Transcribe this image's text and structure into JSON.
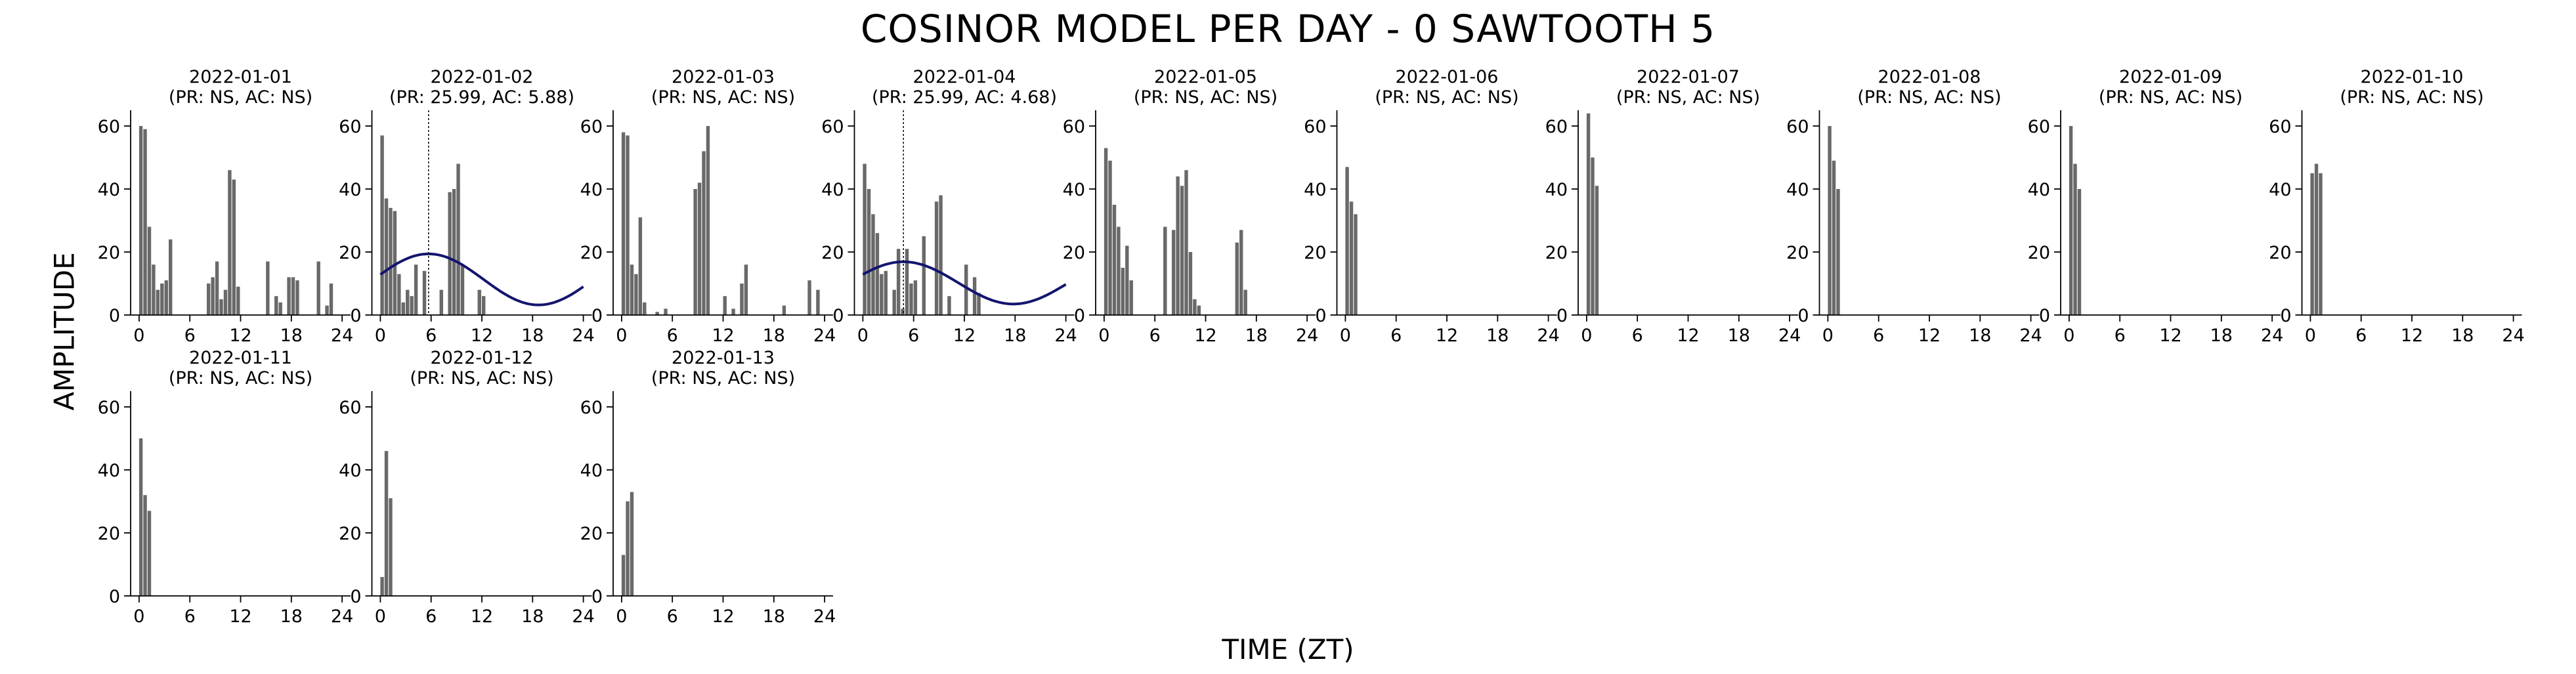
{
  "title": "COSINOR MODEL PER DAY - 0 SAWTOOTH 5",
  "xlabel": "TIME (ZT)",
  "ylabel": "AMPLITUDE",
  "chart_data": {
    "type": "bar",
    "title": "COSINOR MODEL PER DAY - 0 SAWTOOTH 5",
    "xlabel": "TIME (ZT)",
    "ylabel": "AMPLITUDE",
    "xlim": [
      -1,
      25
    ],
    "ylim": [
      0,
      65
    ],
    "xticks": [
      0,
      6,
      12,
      18,
      24
    ],
    "yticks": [
      0,
      20,
      40,
      60
    ],
    "bar_color": "#696969",
    "fit_color": "#14146e",
    "x": [
      0,
      0.5,
      1,
      1.5,
      2,
      2.5,
      3,
      3.5,
      4,
      4.5,
      5,
      5.5,
      6,
      6.5,
      7,
      7.5,
      8,
      8.5,
      9,
      9.5,
      10,
      10.5,
      11,
      11.5,
      12,
      12.5,
      13,
      13.5,
      14,
      14.5,
      15,
      15.5,
      16,
      16.5,
      17,
      17.5,
      18,
      18.5,
      19,
      19.5,
      20,
      20.5,
      21,
      21.5,
      22,
      22.5,
      23,
      23.5
    ],
    "panels": [
      {
        "date": "2022-01-01",
        "stats": "(PR: NS, AC: NS)",
        "values": [
          60,
          59,
          28,
          16,
          8,
          10,
          11,
          24,
          0,
          0,
          0,
          0,
          0,
          0,
          0,
          0,
          10,
          12,
          17,
          5,
          8,
          46,
          43,
          9,
          0,
          0,
          0,
          0,
          0,
          0,
          17,
          0,
          6,
          4,
          0,
          12,
          12,
          11,
          0,
          0,
          0,
          0,
          17,
          0,
          3,
          10,
          0,
          0
        ],
        "fit": null
      },
      {
        "date": "2022-01-02",
        "stats": "(PR: 25.99, AC: 5.88)",
        "values": [
          57,
          37,
          34,
          33,
          13,
          4,
          8,
          6,
          16,
          0,
          14,
          0,
          0,
          0,
          8,
          0,
          39,
          40,
          48,
          16,
          0,
          0,
          0,
          8,
          6,
          0,
          0,
          0,
          0,
          0,
          0,
          0,
          0,
          0,
          0,
          0,
          0,
          0,
          0,
          0,
          0,
          0,
          0,
          0,
          0,
          0,
          0,
          0
        ],
        "fit": {
          "mesor": 11.3,
          "amplitude": 8.1,
          "acrophase": 5.7,
          "period": 25.99
        }
      },
      {
        "date": "2022-01-03",
        "stats": "(PR: NS, AC: NS)",
        "values": [
          58,
          57,
          16,
          13,
          31,
          4,
          0,
          0,
          1,
          0,
          2,
          0,
          0,
          0,
          0,
          0,
          0,
          40,
          42,
          52,
          60,
          0,
          0,
          0,
          6,
          0,
          2,
          0,
          10,
          16,
          0,
          0,
          0,
          0,
          0,
          0,
          0,
          0,
          3,
          0,
          0,
          0,
          0,
          0,
          11,
          0,
          8,
          0
        ],
        "fit": null
      },
      {
        "date": "2022-01-04",
        "stats": "(PR: 25.99, AC: 4.68)",
        "values": [
          48,
          40,
          32,
          26,
          13,
          14,
          0,
          8,
          21,
          2,
          21,
          10,
          11,
          0,
          25,
          0,
          0,
          36,
          38,
          0,
          6,
          0,
          0,
          0,
          16,
          0,
          12,
          7,
          0,
          0,
          0,
          0,
          0,
          0,
          0,
          0,
          0,
          0,
          0,
          0,
          0,
          0,
          0,
          0,
          0,
          0,
          0,
          0
        ],
        "fit": {
          "mesor": 10.2,
          "amplitude": 6.7,
          "acrophase": 4.8,
          "period": 25.99
        }
      },
      {
        "date": "2022-01-05",
        "stats": "(PR: NS, AC: NS)",
        "values": [
          53,
          49,
          35,
          28,
          15,
          22,
          11,
          0,
          0,
          0,
          0,
          0,
          0,
          0,
          28,
          0,
          27,
          44,
          41,
          46,
          20,
          5,
          3,
          0,
          0,
          0,
          0,
          0,
          0,
          0,
          0,
          23,
          27,
          8,
          0,
          0,
          0,
          0,
          0,
          0,
          0,
          0,
          0,
          0,
          0,
          0,
          0,
          0
        ],
        "fit": null
      },
      {
        "date": "2022-01-06",
        "stats": "(PR: NS, AC: NS)",
        "values": [
          47,
          36,
          32,
          0,
          0,
          0,
          0,
          0,
          0,
          0,
          0,
          0,
          0,
          0,
          0,
          0,
          0,
          0,
          0,
          0,
          0,
          0,
          0,
          0,
          0,
          0,
          0,
          0,
          0,
          0,
          0,
          0,
          0,
          0,
          0,
          0,
          0,
          0,
          0,
          0,
          0,
          0,
          0,
          0,
          0,
          0,
          0,
          0
        ],
        "fit": null
      },
      {
        "date": "2022-01-07",
        "stats": "(PR: NS, AC: NS)",
        "values": [
          64,
          50,
          41,
          0,
          0,
          0,
          0,
          0,
          0,
          0,
          0,
          0,
          0,
          0,
          0,
          0,
          0,
          0,
          0,
          0,
          0,
          0,
          0,
          0,
          0,
          0,
          0,
          0,
          0,
          0,
          0,
          0,
          0,
          0,
          0,
          0,
          0,
          0,
          0,
          0,
          0,
          0,
          0,
          0,
          0,
          0,
          0,
          0
        ],
        "fit": null
      },
      {
        "date": "2022-01-08",
        "stats": "(PR: NS, AC: NS)",
        "values": [
          60,
          49,
          40,
          0,
          0,
          0,
          0,
          0,
          0,
          0,
          0,
          0,
          0,
          0,
          0,
          0,
          0,
          0,
          0,
          0,
          0,
          0,
          0,
          0,
          0,
          0,
          0,
          0,
          0,
          0,
          0,
          0,
          0,
          0,
          0,
          0,
          0,
          0,
          0,
          0,
          0,
          0,
          0,
          0,
          0,
          0,
          0,
          0
        ],
        "fit": null
      },
      {
        "date": "2022-01-09",
        "stats": "(PR: NS, AC: NS)",
        "values": [
          60,
          48,
          40,
          0,
          0,
          0,
          0,
          0,
          0,
          0,
          0,
          0,
          0,
          0,
          0,
          0,
          0,
          0,
          0,
          0,
          0,
          0,
          0,
          0,
          0,
          0,
          0,
          0,
          0,
          0,
          0,
          0,
          0,
          0,
          0,
          0,
          0,
          0,
          0,
          0,
          0,
          0,
          0,
          0,
          0,
          0,
          0,
          0
        ],
        "fit": null
      },
      {
        "date": "2022-01-10",
        "stats": "(PR: NS, AC: NS)",
        "values": [
          45,
          48,
          45,
          0,
          0,
          0,
          0,
          0,
          0,
          0,
          0,
          0,
          0,
          0,
          0,
          0,
          0,
          0,
          0,
          0,
          0,
          0,
          0,
          0,
          0,
          0,
          0,
          0,
          0,
          0,
          0,
          0,
          0,
          0,
          0,
          0,
          0,
          0,
          0,
          0,
          0,
          0,
          0,
          0,
          0,
          0,
          0,
          0
        ],
        "fit": null
      },
      {
        "date": "2022-01-11",
        "stats": "(PR: NS, AC: NS)",
        "values": [
          50,
          32,
          27,
          0,
          0,
          0,
          0,
          0,
          0,
          0,
          0,
          0,
          0,
          0,
          0,
          0,
          0,
          0,
          0,
          0,
          0,
          0,
          0,
          0,
          0,
          0,
          0,
          0,
          0,
          0,
          0,
          0,
          0,
          0,
          0,
          0,
          0,
          0,
          0,
          0,
          0,
          0,
          0,
          0,
          0,
          0,
          0,
          0
        ],
        "fit": null
      },
      {
        "date": "2022-01-12",
        "stats": "(PR: NS, AC: NS)",
        "values": [
          6,
          46,
          31,
          0,
          0,
          0,
          0,
          0,
          0,
          0,
          0,
          0,
          0,
          0,
          0,
          0,
          0,
          0,
          0,
          0,
          0,
          0,
          0,
          0,
          0,
          0,
          0,
          0,
          0,
          0,
          0,
          0,
          0,
          0,
          0,
          0,
          0,
          0,
          0,
          0,
          0,
          0,
          0,
          0,
          0,
          0,
          0,
          0
        ],
        "fit": null
      },
      {
        "date": "2022-01-13",
        "stats": "(PR: NS, AC: NS)",
        "values": [
          13,
          30,
          33,
          0,
          0,
          0,
          0,
          0,
          0,
          0,
          0,
          0,
          0,
          0,
          0,
          0,
          0,
          0,
          0,
          0,
          0,
          0,
          0,
          0,
          0,
          0,
          0,
          0,
          0,
          0,
          0,
          0,
          0,
          0,
          0,
          0,
          0,
          0,
          0,
          0,
          0,
          0,
          0,
          0,
          0,
          0,
          0,
          0
        ],
        "fit": null
      }
    ]
  }
}
